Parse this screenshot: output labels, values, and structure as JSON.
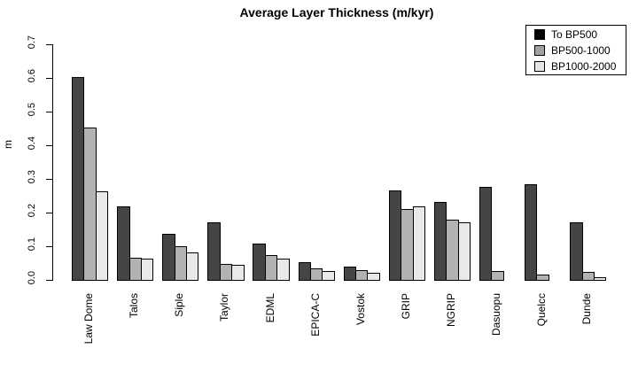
{
  "chart_data": {
    "type": "bar",
    "title": "Average Layer Thickness (m/kyr)",
    "ylabel": "m",
    "xlabel": "",
    "ylim": [
      0,
      0.7
    ],
    "ytick_labels": [
      "0.0",
      "0.1",
      "0.2",
      "0.3",
      "0.4",
      "0.5",
      "0.6",
      "0.7"
    ],
    "grid": false,
    "legend_position": "top-right",
    "categories": [
      "Law Dome",
      "Talos",
      "Siple",
      "Taylor",
      "EDML",
      "EPICA-C",
      "Vostok",
      "GRIP",
      "NGRIP",
      "Dasuopu",
      "Quelcc",
      "Dunde"
    ],
    "series": [
      {
        "name": "To BP500",
        "bar_color": "#454545",
        "legend_fill": "#000000",
        "values": [
          0.602,
          0.219,
          0.136,
          0.172,
          0.107,
          0.053,
          0.04,
          0.267,
          0.231,
          0.277,
          0.284,
          0.17
        ]
      },
      {
        "name": "BP500-1000",
        "bar_color": "#b2b2b2",
        "legend_fill": "#a0a0a0",
        "values": [
          0.453,
          0.067,
          0.099,
          0.048,
          0.073,
          0.034,
          0.028,
          0.211,
          0.18,
          0.025,
          0.016,
          0.023
        ]
      },
      {
        "name": "BP1000-2000",
        "bar_color": "#e9e9e9",
        "legend_fill": "#e6e6e6",
        "values": [
          0.263,
          0.062,
          0.081,
          0.045,
          0.064,
          0.026,
          0.021,
          0.218,
          0.172,
          0,
          0,
          0.007
        ]
      }
    ],
    "axis_color": "#000000",
    "background_color": "#ffffff"
  }
}
